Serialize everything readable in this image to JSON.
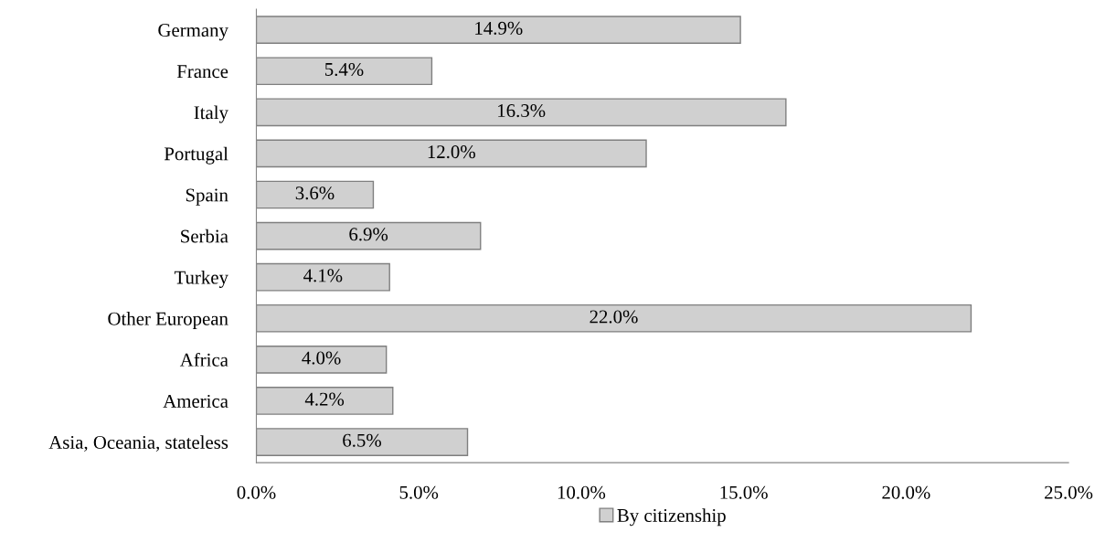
{
  "chart_data": {
    "type": "bar",
    "orientation": "horizontal",
    "categories": [
      "Germany",
      "France",
      "Italy",
      "Portugal",
      "Spain",
      "Serbia",
      "Turkey",
      "Other European",
      "Africa",
      "America",
      "Asia, Oceania, stateless"
    ],
    "series": [
      {
        "name": "By citizenship",
        "color": "#d0d0d0",
        "values": [
          14.9,
          5.4,
          16.3,
          12.0,
          3.6,
          6.9,
          4.1,
          22.0,
          4.0,
          4.2,
          6.5
        ],
        "value_labels": [
          "14.9%",
          "5.4%",
          "16.3%",
          "12.0%",
          "3.6%",
          "6.9%",
          "4.1%",
          "22.0%",
          "4.0%",
          "4.2%",
          "6.5%"
        ]
      }
    ],
    "xlim": [
      0,
      25
    ],
    "xticks": [
      {
        "value": 0,
        "label": "0.0%"
      },
      {
        "value": 5,
        "label": "5.0%"
      },
      {
        "value": 10,
        "label": "10.0%"
      },
      {
        "value": 15,
        "label": "15.0%"
      },
      {
        "value": 20,
        "label": "20.0%"
      },
      {
        "value": 25,
        "label": "25.0%"
      }
    ],
    "grid": false,
    "legend": "bottom"
  }
}
